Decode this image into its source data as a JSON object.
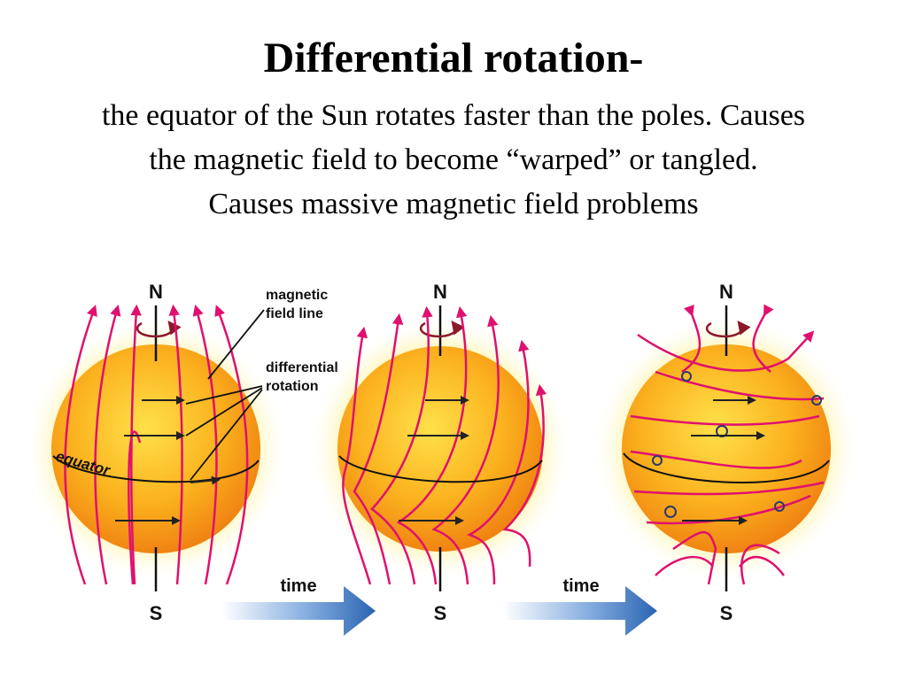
{
  "slide": {
    "title": "Differential rotation-",
    "subtitle_lines": [
      "the equator of the Sun rotates faster than the poles. Causes",
      "the magnetic field to become “warped” or tangled.",
      "Causes massive magnetic field problems"
    ]
  },
  "diagram": {
    "north_label": "N",
    "south_label": "S",
    "equator_label": "equator",
    "magnetic_label_lines": [
      "magnetic",
      "field line"
    ],
    "differential_label_lines": [
      "differential",
      "rotation"
    ],
    "time_label": "time",
    "colors": {
      "sun_center": "#ffd23a",
      "sun_edge": "#f08a0f",
      "glow": "#fff3a0",
      "field_line": "#e0106e",
      "arrow": "#2f6fb8"
    }
  }
}
